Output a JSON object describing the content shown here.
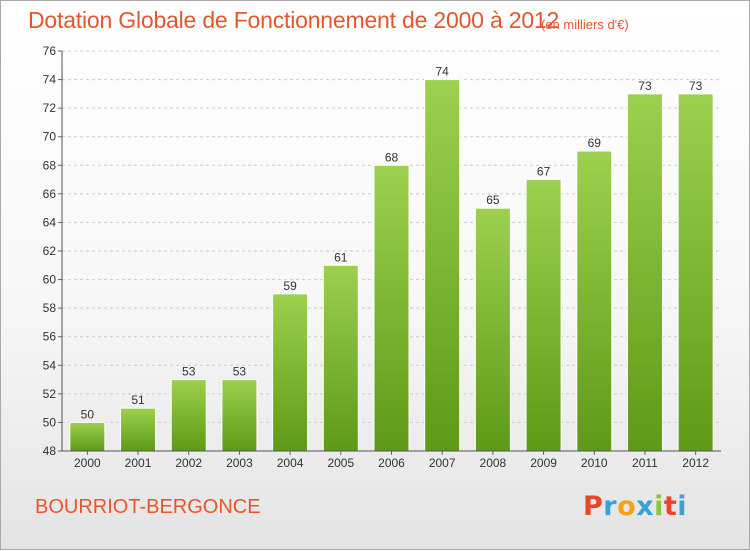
{
  "header": {
    "title": "Dotation Globale de Fonctionnement de 2000 à 2012",
    "unit": "(en milliers d'€)"
  },
  "footer": {
    "commune": "BOURRIOT-BERGONCE",
    "logo": {
      "letters": [
        "P",
        "r",
        "o",
        "x",
        "i",
        "t",
        "i"
      ],
      "colors": [
        "#e8452c",
        "#3aa0d8",
        "#f3a21b",
        "#3aa0d8",
        "#8bc53f",
        "#e8452c",
        "#3aa0d8"
      ]
    }
  },
  "colors": {
    "bar_light": "#9cd14f",
    "bar_dark": "#5e9a17",
    "title": "#e4572e",
    "grid": "#cccccc"
  },
  "chart_data": {
    "type": "bar",
    "title": "Dotation Globale de Fonctionnement de 2000 à 2012",
    "subtitle": "(en milliers d'€)",
    "categories": [
      "2000",
      "2001",
      "2002",
      "2003",
      "2004",
      "2005",
      "2006",
      "2007",
      "2008",
      "2009",
      "2010",
      "2011",
      "2012"
    ],
    "values": [
      50,
      51,
      53,
      53,
      59,
      61,
      68,
      74,
      65,
      67,
      69,
      73,
      73
    ],
    "ylim": [
      48,
      76
    ],
    "yticks": [
      48,
      50,
      52,
      54,
      56,
      58,
      60,
      62,
      64,
      66,
      68,
      70,
      72,
      74,
      76
    ],
    "grid": true,
    "data_labels": true
  }
}
